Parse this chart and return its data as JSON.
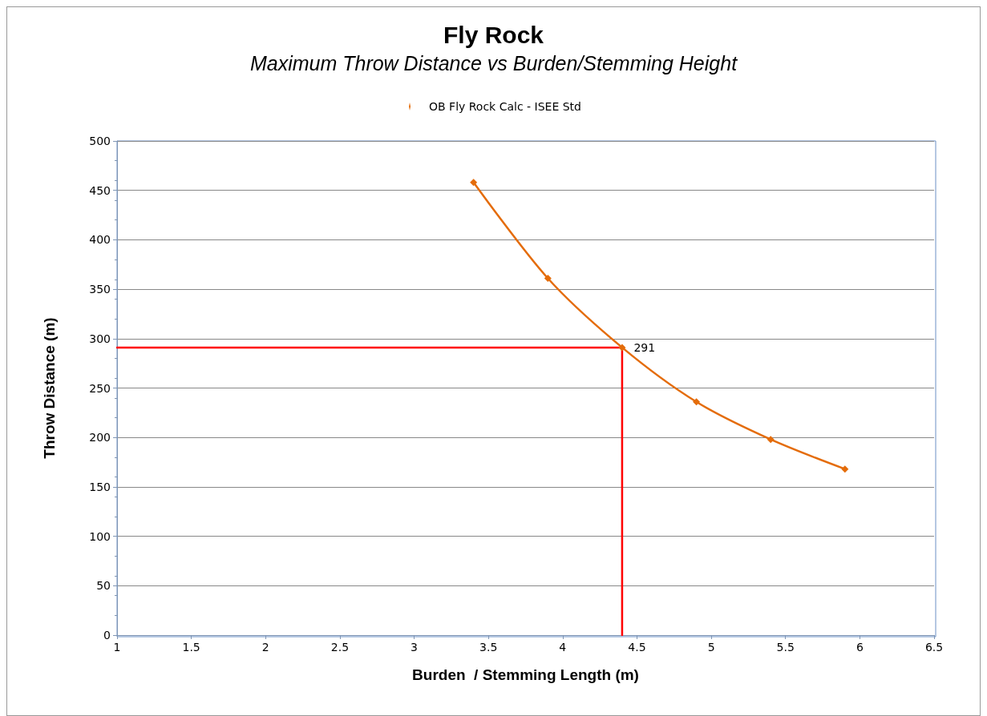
{
  "chart_data": {
    "type": "line",
    "title": "Fly Rock",
    "subtitle": "Maximum Throw Distance vs Burden/Stemming Height",
    "xlabel": "Burden  / Stemming Length (m)",
    "ylabel": "Throw Distance (m)",
    "xlim": [
      1,
      6.5
    ],
    "xticks": [
      1,
      1.5,
      2,
      2.5,
      3,
      3.5,
      4,
      4.5,
      5,
      5.5,
      6,
      6.5
    ],
    "ylim": [
      0,
      500
    ],
    "yticks": [
      0,
      50,
      100,
      150,
      200,
      250,
      300,
      350,
      400,
      450,
      500
    ],
    "grid": "y",
    "legend": "top",
    "marker": "diamond",
    "series": [
      {
        "name": "OB Fly Rock Calc - ISEE Std",
        "color": "#e46c0a",
        "x": [
          3.4,
          3.9,
          4.4,
          4.9,
          5.4,
          5.9
        ],
        "values": [
          458,
          361,
          291,
          236,
          198,
          168
        ],
        "value_labels": [
          null,
          null,
          "291",
          null,
          null,
          null
        ]
      },
      {
        "color": "#ff0000",
        "x": [
          1,
          4.4,
          4.4
        ],
        "values": [
          291,
          291,
          0
        ],
        "marker": "none"
      }
    ]
  }
}
